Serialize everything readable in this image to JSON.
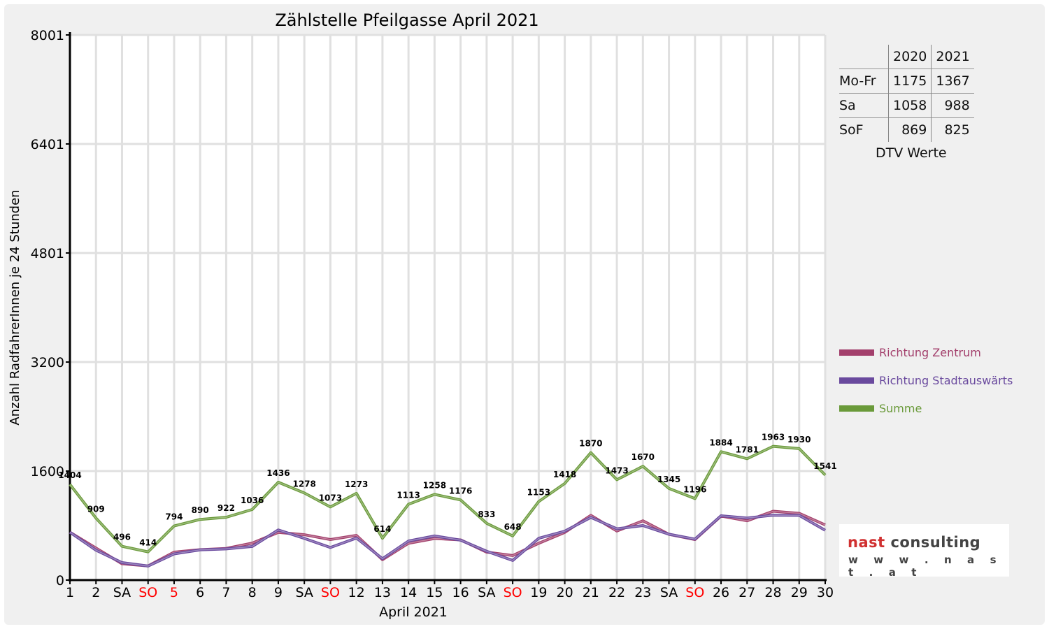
{
  "chart_data": {
    "type": "line",
    "title": "Zählstelle Pfeilgasse April 2021",
    "xlabel": "April 2021",
    "ylabel": "Anzahl RadfahrerInnen je 24 Stunden",
    "ylim": [
      0,
      8001
    ],
    "yticks": [
      "0",
      "1600",
      "3200",
      "4801",
      "6401",
      "8001"
    ],
    "ytick_values": [
      0,
      1600,
      3200,
      4801,
      6401,
      8001
    ],
    "grid": true,
    "legend_position": "right",
    "categories": [
      "1",
      "2",
      "SA",
      "SO",
      "5",
      "6",
      "7",
      "8",
      "9",
      "SA",
      "SO",
      "12",
      "13",
      "14",
      "15",
      "16",
      "SA",
      "SO",
      "19",
      "20",
      "21",
      "22",
      "23",
      "SA",
      "SO",
      "26",
      "27",
      "28",
      "29",
      "30"
    ],
    "holidays": [
      false,
      false,
      false,
      true,
      true,
      false,
      false,
      false,
      false,
      false,
      true,
      false,
      false,
      false,
      false,
      false,
      false,
      true,
      false,
      false,
      false,
      false,
      false,
      false,
      true,
      false,
      false,
      false,
      false,
      false
    ],
    "series": [
      {
        "name": "Richtung Zentrum",
        "color": "#a3406c",
        "values": [
          702,
          470,
          240,
          208,
          410,
          446,
          464,
          543,
          700,
          666,
          595,
          656,
          300,
          540,
          610,
          590,
          410,
          360,
          540,
          700,
          950,
          720,
          870,
          672,
          595,
          940,
          870,
          1010,
          980,
          810
        ]
      },
      {
        "name": "Richtung Stadtauswärts",
        "color": "#6a4a9e",
        "values": [
          702,
          439,
          256,
          206,
          384,
          444,
          458,
          493,
          736,
          612,
          478,
          617,
          314,
          573,
          648,
          586,
          423,
          288,
          613,
          718,
          920,
          753,
          800,
          673,
          601,
          944,
          911,
          953,
          950,
          731
        ]
      },
      {
        "name": "Summe",
        "color": "#6a9a3a",
        "values": [
          1404,
          909,
          496,
          414,
          794,
          890,
          922,
          1036,
          1436,
          1278,
          1073,
          1273,
          614,
          1113,
          1258,
          1176,
          833,
          648,
          1153,
          1418,
          1870,
          1473,
          1670,
          1345,
          1196,
          1884,
          1781,
          1963,
          1930,
          1541
        ],
        "labeled": true
      }
    ]
  },
  "dtv_table": {
    "headers": [
      "2020",
      "2021"
    ],
    "rows": [
      {
        "label": "Mo-Fr",
        "v2020": "1175",
        "v2021": "1367"
      },
      {
        "label": "Sa",
        "v2020": "1058",
        "v2021": "988"
      },
      {
        "label": "SoF",
        "v2020": "869",
        "v2021": "825"
      }
    ],
    "caption": "DTV Werte"
  },
  "logo": {
    "name_part1": "nast",
    "name_part2": "consulting",
    "url": "w w w . n a s t . a t"
  },
  "colors": {
    "holiday": "#ff0000",
    "grid": "#e0e0e0",
    "plot_bg": "#ffffff"
  }
}
